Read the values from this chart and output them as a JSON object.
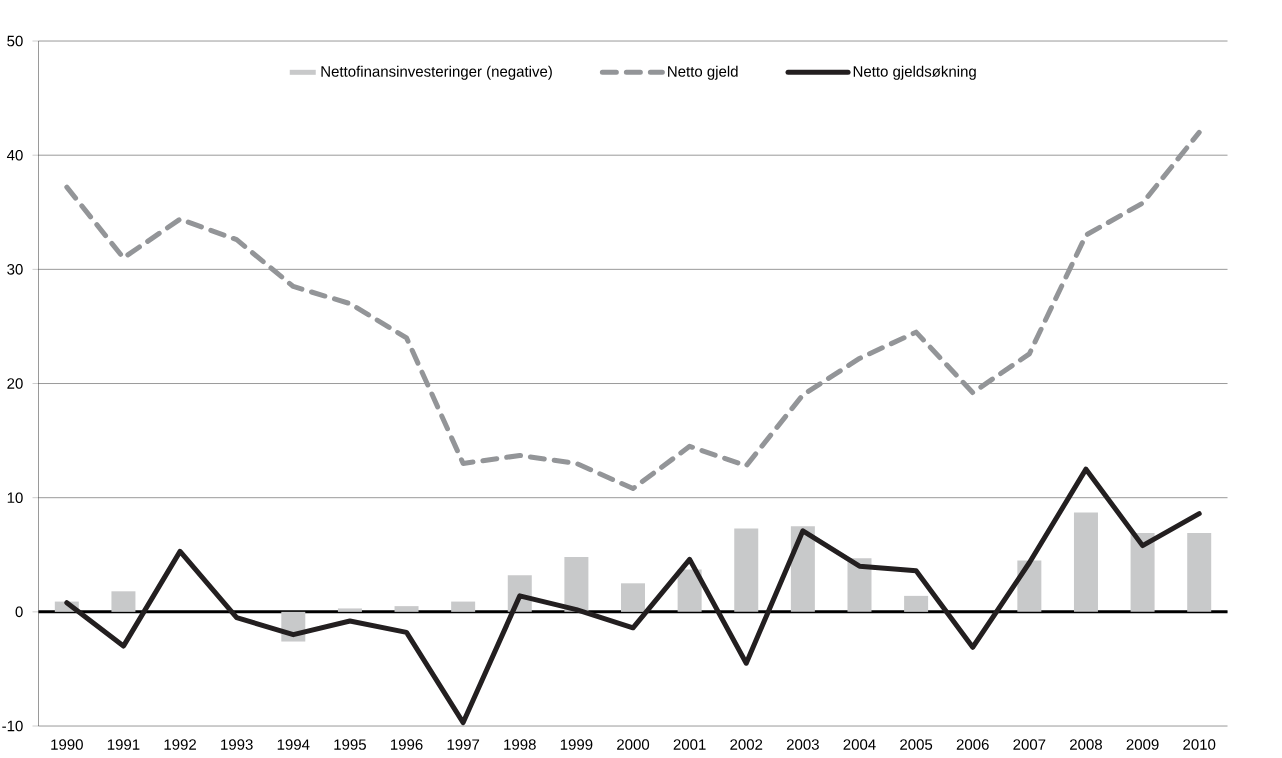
{
  "chart_data": {
    "type": "bar",
    "categories": [
      "1990",
      "1991",
      "1992",
      "1993",
      "1994",
      "1995",
      "1996",
      "1997",
      "1998",
      "1999",
      "2000",
      "2001",
      "2002",
      "2003",
      "2004",
      "2005",
      "2006",
      "2007",
      "2008",
      "2009",
      "2010"
    ],
    "series": [
      {
        "name": "Nettofinansinvesteringer (negative)",
        "type": "bar",
        "color": "#c8c9ca",
        "values": [
          0.9,
          1.8,
          0,
          0,
          -2.6,
          0.3,
          0.5,
          0.9,
          3.2,
          4.8,
          2.5,
          3.7,
          7.3,
          7.5,
          4.7,
          1.4,
          0,
          4.5,
          8.7,
          6.9,
          6.9
        ]
      },
      {
        "name": "Netto gjeld",
        "type": "line",
        "color": "#939598",
        "line_style": "dashed",
        "values": [
          37.2,
          31,
          34.4,
          32.6,
          28.5,
          27,
          24,
          13,
          13.7,
          13,
          10.8,
          14.5,
          12.8,
          19,
          22.2,
          24.5,
          19.2,
          22.6,
          33,
          35.8,
          42
        ]
      },
      {
        "name": "Netto gjeldsøkning",
        "type": "line",
        "color": "#231f20",
        "line_style": "solid",
        "values": [
          0.8,
          -3,
          5.3,
          -0.5,
          -2,
          -0.8,
          -1.8,
          -9.7,
          1.4,
          0.2,
          -1.4,
          4.6,
          -4.5,
          7.1,
          4.0,
          3.6,
          -3.1,
          4.3,
          12.5,
          5.8,
          8.6
        ]
      }
    ],
    "ylim": [
      -10,
      50
    ],
    "yticks": [
      -10,
      0,
      10,
      20,
      30,
      40,
      50
    ],
    "grid": "y",
    "legend": "top"
  }
}
